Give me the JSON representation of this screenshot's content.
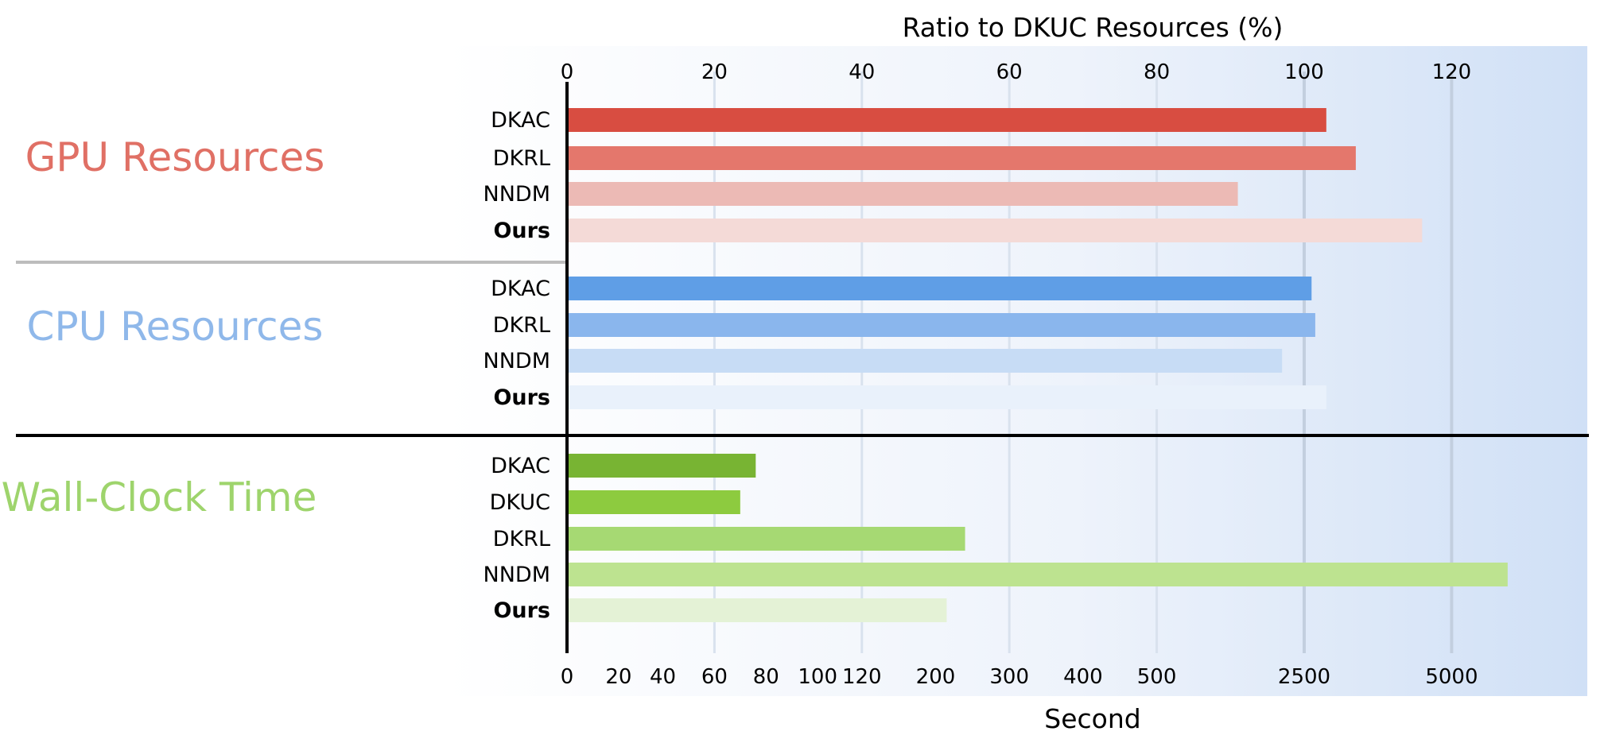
{
  "colors": {
    "gpu": "#e07065",
    "cpu": "#8fb8ea",
    "wall": "#9ed46c",
    "bg_start": "#ffffff",
    "bg_end": "#d0e0f6"
  },
  "chart_data": {
    "type": "bar",
    "orientation": "horizontal",
    "top_axis": {
      "label": "Ratio to DKUC Resources (%)",
      "ticks": [
        0,
        20,
        40,
        60,
        80,
        100,
        120
      ],
      "range": [
        0,
        139
      ]
    },
    "bottom_axis": {
      "label": "Second",
      "tick_labels": [
        "0",
        "20",
        "40",
        "60",
        "80",
        "100",
        "120",
        "200",
        "300",
        "400",
        "500",
        "2500",
        "5000"
      ],
      "scale": "piecewise (non-linear)"
    },
    "grid": true,
    "groups": [
      {
        "name": "GPU Resources",
        "color": "#e07065",
        "axis": "top",
        "categories": [
          "DKAC",
          "DKRL",
          "NNDM",
          "Ours"
        ],
        "values": [
          103,
          107,
          91,
          116
        ],
        "bar_colors": [
          "#d84d41",
          "#e4776c",
          "#ecbab5",
          "#f4dad7"
        ]
      },
      {
        "name": "CPU Resources",
        "color": "#8fb8ea",
        "axis": "top",
        "categories": [
          "DKAC",
          "DKRL",
          "NNDM",
          "Ours"
        ],
        "values": [
          101,
          101.5,
          97,
          103
        ],
        "bar_colors": [
          "#5f9ee6",
          "#8ab6ed",
          "#c7dcf5",
          "#e9f1fb"
        ]
      },
      {
        "name": "Wall-Clock Time",
        "color": "#9ed46c",
        "axis": "bottom",
        "categories": [
          "DKAC",
          "DKUC",
          "DKRL",
          "NNDM",
          "Ours"
        ],
        "values": [
          76,
          70,
          240,
          5800,
          215
        ],
        "bar_colors": [
          "#78b433",
          "#8dcb3f",
          "#a6d973",
          "#bde390",
          "#e4f2d6"
        ]
      }
    ]
  }
}
